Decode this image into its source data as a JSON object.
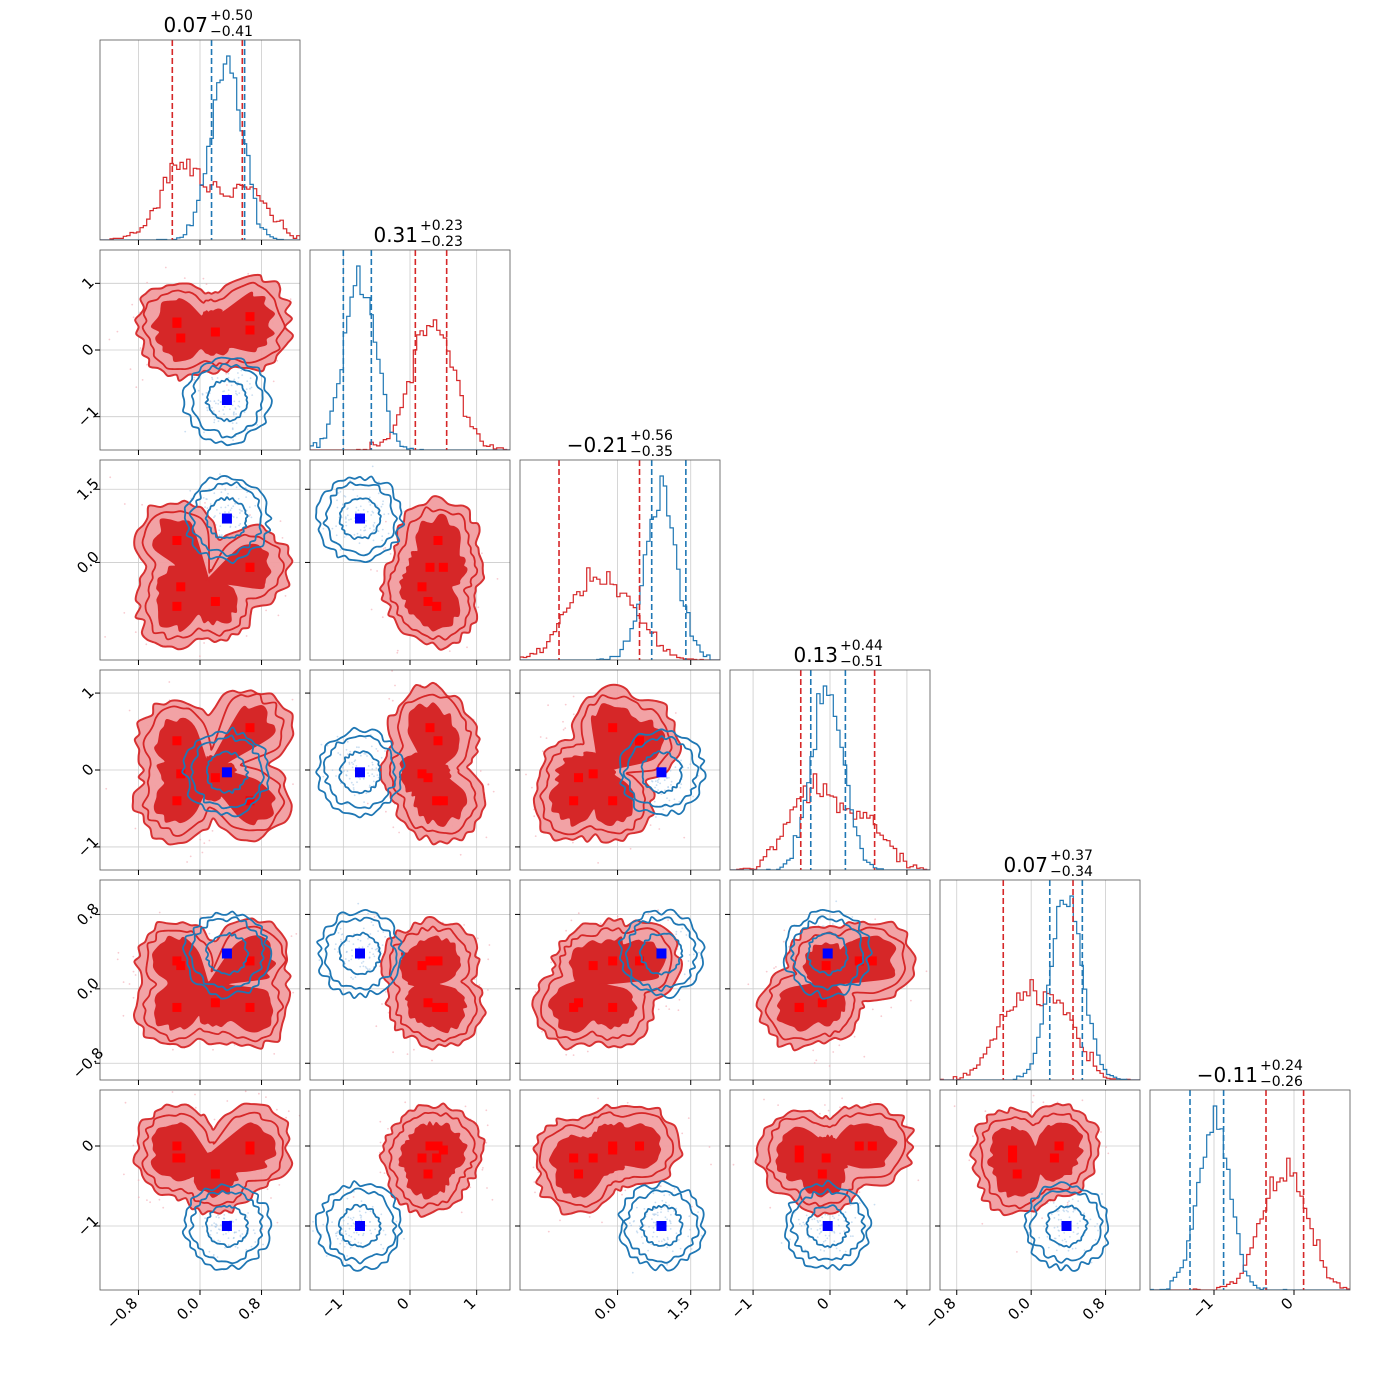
{
  "chart_data": {
    "type": "corner",
    "n_params": 6,
    "colors": {
      "red": "#d62728",
      "blue": "#1f77b4",
      "red_marker": "#ff0000",
      "blue_marker": "#0000ff",
      "grid": "#cccccc"
    },
    "params": [
      {
        "title_main": "0.07",
        "title_sup": "+0.50",
        "title_sub": "−0.41",
        "range": [
          -1.3,
          1.3
        ],
        "ticks": [
          -0.8,
          0.0,
          0.8
        ],
        "tick_labels": [
          "−0.8",
          "0.0",
          "0.8"
        ]
      },
      {
        "title_main": "0.31",
        "title_sup": "+0.23",
        "title_sub": "−0.23",
        "range": [
          -1.5,
          1.5
        ],
        "ticks": [
          -1,
          0,
          1
        ],
        "tick_labels": [
          "−1",
          "0",
          "1"
        ]
      },
      {
        "title_main": "−0.21",
        "title_sup": "+0.56",
        "title_sub": "−0.35",
        "range": [
          -2.0,
          2.1
        ],
        "ticks": [
          0.0,
          1.5
        ],
        "tick_labels": [
          "0.0",
          "1.5"
        ]
      },
      {
        "title_main": "0.13",
        "title_sup": "+0.44",
        "title_sub": "−0.51",
        "range": [
          -1.3,
          1.3
        ],
        "ticks": [
          -1,
          0,
          1
        ],
        "tick_labels": [
          "−1",
          "0",
          "1"
        ]
      },
      {
        "title_main": "0.07",
        "title_sup": "+0.37",
        "title_sub": "−0.34",
        "range": [
          -0.98,
          1.17
        ],
        "ticks": [
          -0.8,
          0.0,
          0.8
        ],
        "tick_labels": [
          "−0.8",
          "0.0",
          "0.8"
        ]
      },
      {
        "title_main": "−0.11",
        "title_sup": "+0.24",
        "title_sub": "−0.26",
        "range": [
          -1.8,
          0.7
        ],
        "ticks": [
          -1,
          0
        ],
        "tick_labels": [
          "−1",
          "0"
        ]
      }
    ],
    "blue_dataset": {
      "marker": [
        0.35,
        -0.75,
        0.9,
        -0.03,
        0.38,
        -1.0
      ],
      "quantile_lines": [
        [
          0.15,
          0.58
        ],
        [
          -1.0,
          -0.58
        ],
        [
          0.7,
          1.4
        ],
        [
          -0.25,
          0.2
        ],
        [
          0.2,
          0.55
        ],
        [
          -1.3,
          -0.88
        ]
      ]
    },
    "red_dataset": {
      "markers": [
        [
          -0.3,
          0.42,
          0.45,
          0.38,
          0.3,
          0.0
        ],
        [
          -0.25,
          0.18,
          -0.5,
          -0.05,
          0.25,
          -0.15
        ],
        [
          0.2,
          0.27,
          -0.8,
          -0.1,
          -0.15,
          -0.35
        ],
        [
          0.65,
          0.3,
          -0.1,
          0.55,
          0.3,
          0.0
        ],
        [
          -0.3,
          0.4,
          -0.9,
          -0.4,
          -0.2,
          -0.15
        ],
        [
          0.65,
          0.5,
          -0.1,
          -0.4,
          -0.2,
          -0.05
        ]
      ],
      "quantile_lines": [
        [
          -0.36,
          0.55
        ],
        [
          0.08,
          0.55
        ],
        [
          -1.2,
          0.45
        ],
        [
          -0.38,
          0.58
        ],
        [
          -0.3,
          0.45
        ],
        [
          -0.35,
          0.12
        ]
      ]
    }
  }
}
